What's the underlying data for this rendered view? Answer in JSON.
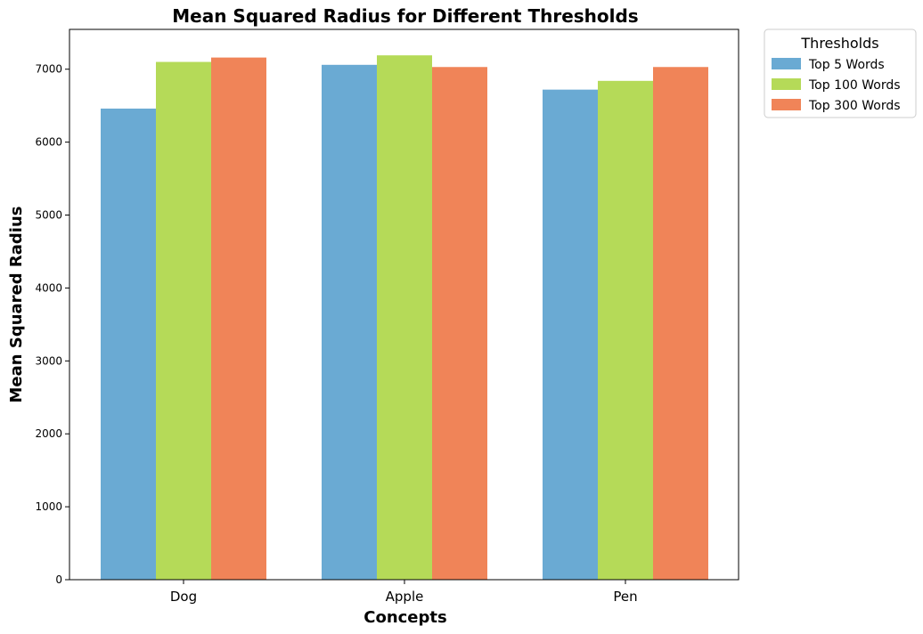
{
  "chart_data": {
    "type": "bar",
    "title": "Mean Squared Radius for Different Thresholds",
    "xlabel": "Concepts",
    "ylabel": "Mean Squared Radius",
    "categories": [
      "Dog",
      "Apple",
      "Pen"
    ],
    "series": [
      {
        "name": "Top 5 Words",
        "color": "#6aaad3",
        "values": [
          6460,
          7060,
          6720
        ]
      },
      {
        "name": "Top 100 Words",
        "color": "#b5da58",
        "values": [
          7100,
          7190,
          6840
        ]
      },
      {
        "name": "Top 300 Words",
        "color": "#f08458",
        "values": [
          7160,
          7030,
          7030
        ]
      }
    ],
    "ylim": [
      0,
      7546
    ],
    "yticks": [
      0,
      1000,
      2000,
      3000,
      4000,
      5000,
      6000,
      7000
    ],
    "legend": {
      "title": "Thresholds",
      "placement": "outside-top-right"
    },
    "grid": false
  }
}
